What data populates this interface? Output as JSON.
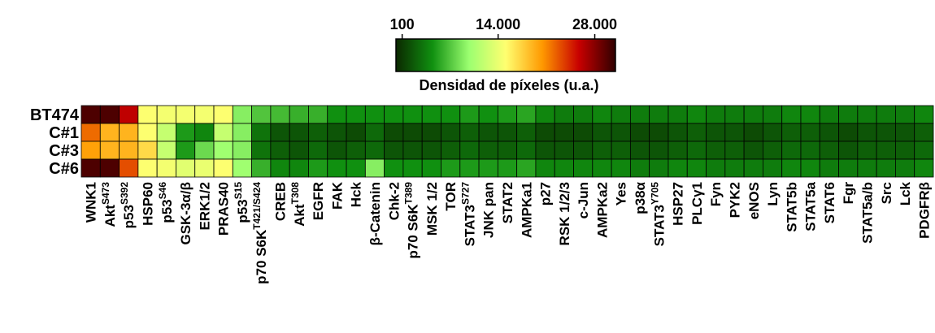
{
  "chart_data": {
    "type": "heatmap",
    "colorbar_title": "Densidad de píxeles (u.a.)",
    "clim": [
      -800,
      31000
    ],
    "cticks": [
      100,
      {
        "value": 14000,
        "label": "14.000"
      },
      {
        "value": 28000,
        "label": "28.000"
      }
    ],
    "colorscale": [
      "#0b2800",
      "#109010",
      "#9cff70",
      "#ffff70",
      "#ff9900",
      "#c80000",
      "#300000"
    ],
    "categories": [
      "WNK1",
      "Akt",
      "p53",
      "HSP60",
      "p53",
      "GSK-3α/β",
      "ERK1/2",
      "PRAS40",
      "p53",
      "p70 S6K",
      "CREB",
      "Akt",
      "EGFR",
      "FAK",
      "Hck",
      "β-Catenin",
      "Chk-2",
      "p70 S6K",
      "MSK 1/2",
      "TOR",
      "STAT3",
      "JNK pan",
      "STAT2",
      "AMPKa1",
      "p27",
      "RSK 1/2/3",
      "c-Jun",
      "AMPKa2",
      "Yes",
      "p38α",
      "STAT3",
      "HSP27",
      "PLCγ1",
      "Fyn",
      "PYK2",
      "eNOS",
      "Lyn",
      "STAT5b",
      "STAT5a",
      "STAT6",
      "Fgr",
      "STAT5a/b",
      "Src",
      "Lck",
      "PDGFRβ"
    ],
    "category_superscripts": [
      null,
      "S473",
      "S392",
      null,
      "S46",
      null,
      null,
      null,
      "S15",
      "T421/S424",
      null,
      "T308",
      null,
      null,
      null,
      null,
      null,
      "T389",
      null,
      null,
      "S727",
      null,
      null,
      null,
      null,
      null,
      null,
      null,
      null,
      null,
      "Y705",
      null,
      null,
      null,
      null,
      null,
      null,
      null,
      null,
      null,
      null,
      null,
      null,
      null,
      null
    ],
    "series": [
      {
        "name": "BT474",
        "values": [
          30000,
          30000,
          26000,
          15000,
          14500,
          14500,
          14500,
          15000,
          9000,
          7000,
          6500,
          6000,
          6000,
          4500,
          4500,
          4500,
          4500,
          4500,
          4500,
          4500,
          5000,
          4500,
          5000,
          5500,
          4000,
          3500,
          3500,
          4000,
          3500,
          3500,
          3500,
          3500,
          4000,
          3500,
          3500,
          3500,
          3500,
          4000,
          4000,
          3500,
          3500,
          3500,
          3500,
          3500,
          4000
        ]
      },
      {
        "name": "C#1",
        "values": [
          22000,
          19000,
          19000,
          15000,
          12000,
          5000,
          4000,
          12000,
          9000,
          3000,
          1500,
          1500,
          2000,
          1500,
          1000,
          2500,
          1000,
          1000,
          1000,
          1500,
          2000,
          1500,
          1500,
          2000,
          1000,
          1000,
          1000,
          1500,
          1500,
          1000,
          1000,
          1500,
          2000,
          1500,
          1500,
          1000,
          1500,
          2000,
          2000,
          1500,
          1000,
          1500,
          1500,
          1500,
          2000
        ]
      },
      {
        "name": "C#3",
        "values": [
          20000,
          19000,
          19000,
          17000,
          12000,
          5000,
          8000,
          10000,
          9000,
          3000,
          2000,
          1500,
          2500,
          1500,
          2000,
          2500,
          1500,
          1500,
          1500,
          2000,
          2500,
          2000,
          2000,
          2500,
          1500,
          1500,
          1500,
          2000,
          2000,
          1500,
          1500,
          2000,
          2500,
          2000,
          2000,
          1500,
          2000,
          2500,
          2500,
          2000,
          1500,
          2000,
          2000,
          2000,
          2500
        ]
      },
      {
        "name": "C#6",
        "values": [
          30000,
          30000,
          23000,
          15000,
          14500,
          13500,
          14000,
          15000,
          10000,
          6000,
          4000,
          4000,
          5000,
          4500,
          4500,
          9000,
          4500,
          4500,
          4500,
          5000,
          5000,
          5000,
          5000,
          5500,
          4000,
          4000,
          4000,
          4000,
          4000,
          3500,
          3500,
          4000,
          4000,
          3500,
          3500,
          3500,
          3500,
          4000,
          4000,
          3500,
          3500,
          3500,
          3500,
          3500,
          4000
        ]
      }
    ]
  }
}
